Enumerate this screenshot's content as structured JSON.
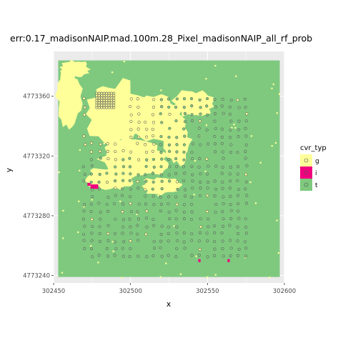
{
  "chart_data": {
    "type": "raster+scatter",
    "title": "err:0.17_madisonNAIP.mad.100m.28_Pixel_madisonNAIP_all_rf_prob",
    "xlabel": "x",
    "ylabel": "y",
    "xlim": [
      302450,
      302600
    ],
    "ylim": [
      4773235,
      4773390
    ],
    "xticks": [
      302450,
      302500,
      302550,
      302600
    ],
    "yticks": [
      4773240,
      4773280,
      4773320,
      4773360
    ],
    "xtick_labels": [
      "302450",
      "302500",
      "302550",
      "302600"
    ],
    "ytick_labels": [
      "4773240",
      "4773280",
      "4773320",
      "4773360"
    ],
    "grid": true,
    "legend": {
      "title": "cvr_typ",
      "position": "right",
      "entries": [
        {
          "label": "g",
          "color": "#ffff99"
        },
        {
          "label": "i",
          "color": "#f0027f"
        },
        {
          "label": "t",
          "color": "#7fc97f"
        }
      ]
    },
    "raster": {
      "extent_x": [
        302453,
        302597
      ],
      "extent_y": [
        4773239,
        4773384
      ],
      "background_class": "t",
      "patches_g": [
        {
          "cx": 302490,
          "cy": 4773348,
          "rx": 20,
          "ry": 22
        },
        {
          "cx": 302515,
          "cy": 4773345,
          "rx": 22,
          "ry": 16
        },
        {
          "cx": 302503,
          "cy": 4773318,
          "rx": 24,
          "ry": 12
        },
        {
          "cx": 302487,
          "cy": 4773305,
          "rx": 16,
          "ry": 8
        },
        {
          "cx": 302530,
          "cy": 4773328,
          "rx": 10,
          "ry": 14
        },
        {
          "cx": 302540,
          "cy": 4773355,
          "rx": 14,
          "ry": 9
        },
        {
          "cx": 302460,
          "cy": 4773360,
          "rx": 8,
          "ry": 20
        },
        {
          "cx": 302464,
          "cy": 4773378,
          "rx": 10,
          "ry": 6
        },
        {
          "cx": 302520,
          "cy": 4773300,
          "rx": 14,
          "ry": 6
        }
      ],
      "patches_i": [
        {
          "x": 302474,
          "y": 4773298,
          "w": 5,
          "h": 3
        },
        {
          "x": 302472,
          "y": 4773300,
          "w": 2,
          "h": 2
        },
        {
          "x": 302544,
          "y": 4773249,
          "w": 1.5,
          "h": 2
        },
        {
          "x": 302563,
          "y": 4773249,
          "w": 1.5,
          "h": 2
        }
      ]
    },
    "points": {
      "description": "sample plot centers, class g or t",
      "x_range": [
        302470,
        302576
      ],
      "y_range": [
        4773251,
        4773358
      ],
      "spacing": 5
    }
  }
}
